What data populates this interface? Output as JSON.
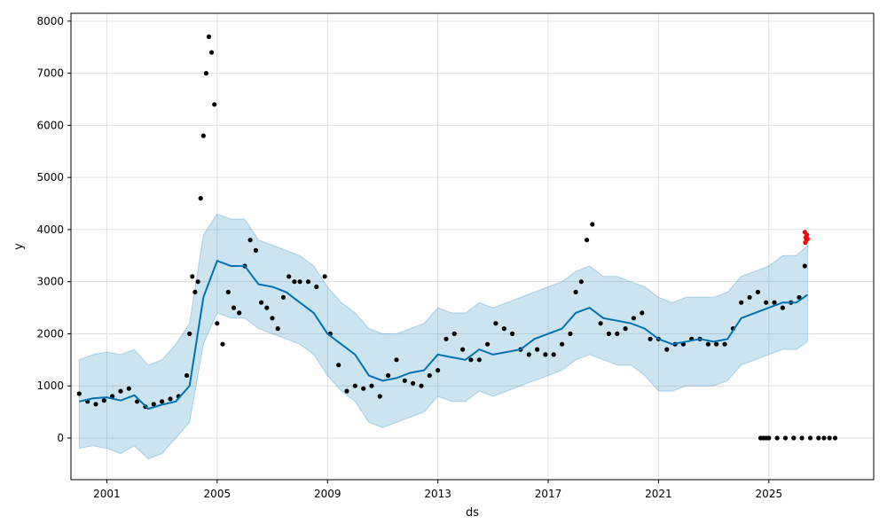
{
  "chart_data": {
    "type": "scatter",
    "xlabel": "ds",
    "ylabel": "y",
    "xlim": [
      1999.7,
      2028.8
    ],
    "ylim": [
      -800,
      8150
    ],
    "x_ticks": [
      2001,
      2005,
      2009,
      2013,
      2017,
      2021,
      2025
    ],
    "x_tick_labels": [
      "2001",
      "2005",
      "2009",
      "2013",
      "2017",
      "2021",
      "2025"
    ],
    "y_ticks": [
      0,
      1000,
      2000,
      3000,
      4000,
      5000,
      6000,
      7000,
      8000
    ],
    "y_tick_labels": [
      "0",
      "1000",
      "2000",
      "3000",
      "4000",
      "5000",
      "6000",
      "7000",
      "8000"
    ],
    "grid": true,
    "colors": {
      "observed": "#000000",
      "recent": "#ff0000",
      "forecast_line": "#0072B2",
      "uncertainty_band": "#0072B2"
    },
    "forecast": {
      "x": [
        2000.0,
        2000.5,
        2001.0,
        2001.5,
        2002.0,
        2002.5,
        2003.0,
        2003.5,
        2004.0,
        2004.5,
        2005.0,
        2005.5,
        2006.0,
        2006.5,
        2007.0,
        2007.5,
        2008.0,
        2008.5,
        2009.0,
        2009.5,
        2010.0,
        2010.5,
        2011.0,
        2011.5,
        2012.0,
        2012.5,
        2013.0,
        2013.5,
        2014.0,
        2014.5,
        2015.0,
        2015.5,
        2016.0,
        2016.5,
        2017.0,
        2017.5,
        2018.0,
        2018.5,
        2019.0,
        2019.5,
        2020.0,
        2020.5,
        2021.0,
        2021.5,
        2022.0,
        2022.5,
        2023.0,
        2023.5,
        2024.0,
        2024.5,
        2025.0,
        2025.5,
        2026.0,
        2026.4
      ],
      "yhat": [
        700,
        760,
        780,
        720,
        820,
        560,
        640,
        700,
        1000,
        2700,
        3400,
        3300,
        3300,
        2950,
        2900,
        2800,
        2600,
        2400,
        2000,
        1800,
        1600,
        1200,
        1100,
        1150,
        1250,
        1300,
        1600,
        1550,
        1500,
        1700,
        1600,
        1650,
        1700,
        1900,
        2000,
        2100,
        2400,
        2500,
        2300,
        2250,
        2200,
        2100,
        1900,
        1800,
        1850,
        1900,
        1850,
        1900,
        2300,
        2400,
        2500,
        2600,
        2600,
        2750
      ],
      "yhat_lower": [
        -200,
        -150,
        -200,
        -300,
        -150,
        -400,
        -300,
        0,
        300,
        1800,
        2400,
        2300,
        2300,
        2100,
        2000,
        1900,
        1800,
        1600,
        1200,
        900,
        700,
        300,
        200,
        300,
        400,
        500,
        800,
        700,
        700,
        900,
        800,
        900,
        1000,
        1100,
        1200,
        1300,
        1500,
        1600,
        1500,
        1400,
        1400,
        1200,
        900,
        900,
        1000,
        1000,
        1000,
        1100,
        1400,
        1500,
        1600,
        1700,
        1700,
        1850
      ],
      "yhat_upper": [
        1500,
        1600,
        1650,
        1600,
        1700,
        1400,
        1500,
        1800,
        2200,
        3900,
        4300,
        4200,
        4200,
        3800,
        3700,
        3600,
        3500,
        3300,
        2900,
        2600,
        2400,
        2100,
        2000,
        2000,
        2100,
        2200,
        2500,
        2400,
        2400,
        2600,
        2500,
        2600,
        2700,
        2800,
        2900,
        3000,
        3200,
        3300,
        3100,
        3100,
        3000,
        2900,
        2700,
        2600,
        2700,
        2700,
        2700,
        2800,
        3100,
        3200,
        3300,
        3500,
        3500,
        3700
      ]
    },
    "observed": {
      "x": [
        2000.0,
        2000.3,
        2000.6,
        2000.9,
        2001.2,
        2001.5,
        2001.8,
        2002.1,
        2002.4,
        2002.7,
        2003.0,
        2003.3,
        2003.6,
        2003.9,
        2004.0,
        2004.1,
        2004.2,
        2004.3,
        2004.4,
        2004.5,
        2004.6,
        2004.7,
        2004.8,
        2004.9,
        2005.0,
        2005.2,
        2005.4,
        2005.6,
        2005.8,
        2006.0,
        2006.2,
        2006.4,
        2006.6,
        2006.8,
        2007.0,
        2007.2,
        2007.4,
        2007.6,
        2007.8,
        2008.0,
        2008.3,
        2008.6,
        2008.9,
        2009.1,
        2009.4,
        2009.7,
        2010.0,
        2010.3,
        2010.6,
        2010.9,
        2011.2,
        2011.5,
        2011.8,
        2012.1,
        2012.4,
        2012.7,
        2013.0,
        2013.3,
        2013.6,
        2013.9,
        2014.2,
        2014.5,
        2014.8,
        2015.1,
        2015.4,
        2015.7,
        2016.0,
        2016.3,
        2016.6,
        2016.9,
        2017.2,
        2017.5,
        2017.8,
        2018.0,
        2018.2,
        2018.4,
        2018.6,
        2018.9,
        2019.2,
        2019.5,
        2019.8,
        2020.1,
        2020.4,
        2020.7,
        2021.0,
        2021.3,
        2021.6,
        2021.9,
        2022.2,
        2022.5,
        2022.8,
        2023.1,
        2023.4,
        2023.7,
        2024.0,
        2024.3,
        2024.6,
        2024.9,
        2025.2,
        2025.5,
        2025.8,
        2026.1,
        2026.3
      ],
      "y": [
        850,
        700,
        650,
        720,
        800,
        900,
        950,
        700,
        600,
        650,
        700,
        750,
        800,
        1200,
        2000,
        3100,
        2800,
        3000,
        4600,
        5800,
        7000,
        7700,
        7400,
        6400,
        2200,
        1800,
        2800,
        2500,
        2400,
        3300,
        3800,
        3600,
        2600,
        2500,
        2300,
        2100,
        2700,
        3100,
        3000,
        3000,
        3000,
        2900,
        3100,
        2000,
        1400,
        900,
        1000,
        950,
        1000,
        800,
        1200,
        1500,
        1100,
        1050,
        1000,
        1200,
        1300,
        1900,
        2000,
        1700,
        1500,
        1500,
        1800,
        2200,
        2100,
        2000,
        1700,
        1600,
        1700,
        1600,
        1600,
        1800,
        2000,
        2800,
        3000,
        3800,
        4100,
        2200,
        2000,
        2000,
        2100,
        2300,
        2400,
        1900,
        1900,
        1700,
        1800,
        1800,
        1900,
        1900,
        1800,
        1800,
        1800,
        2100,
        2600,
        2700,
        2800,
        2600,
        2600,
        2500,
        2600,
        2700,
        3300
      ]
    },
    "zeros": {
      "x": [
        2024.7,
        2024.8,
        2024.9,
        2025.0,
        2025.3,
        2025.6,
        2025.9,
        2026.2,
        2026.5,
        2026.8,
        2027.0,
        2027.2,
        2027.4
      ],
      "y": [
        0,
        0,
        0,
        0,
        0,
        0,
        0,
        0,
        0,
        0,
        0,
        0,
        0
      ]
    },
    "recent": {
      "x": [
        2026.3,
        2026.32,
        2026.34,
        2026.36,
        2026.38,
        2026.4
      ],
      "y": [
        3950,
        3750,
        3850,
        3800,
        3900,
        3820
      ]
    }
  }
}
